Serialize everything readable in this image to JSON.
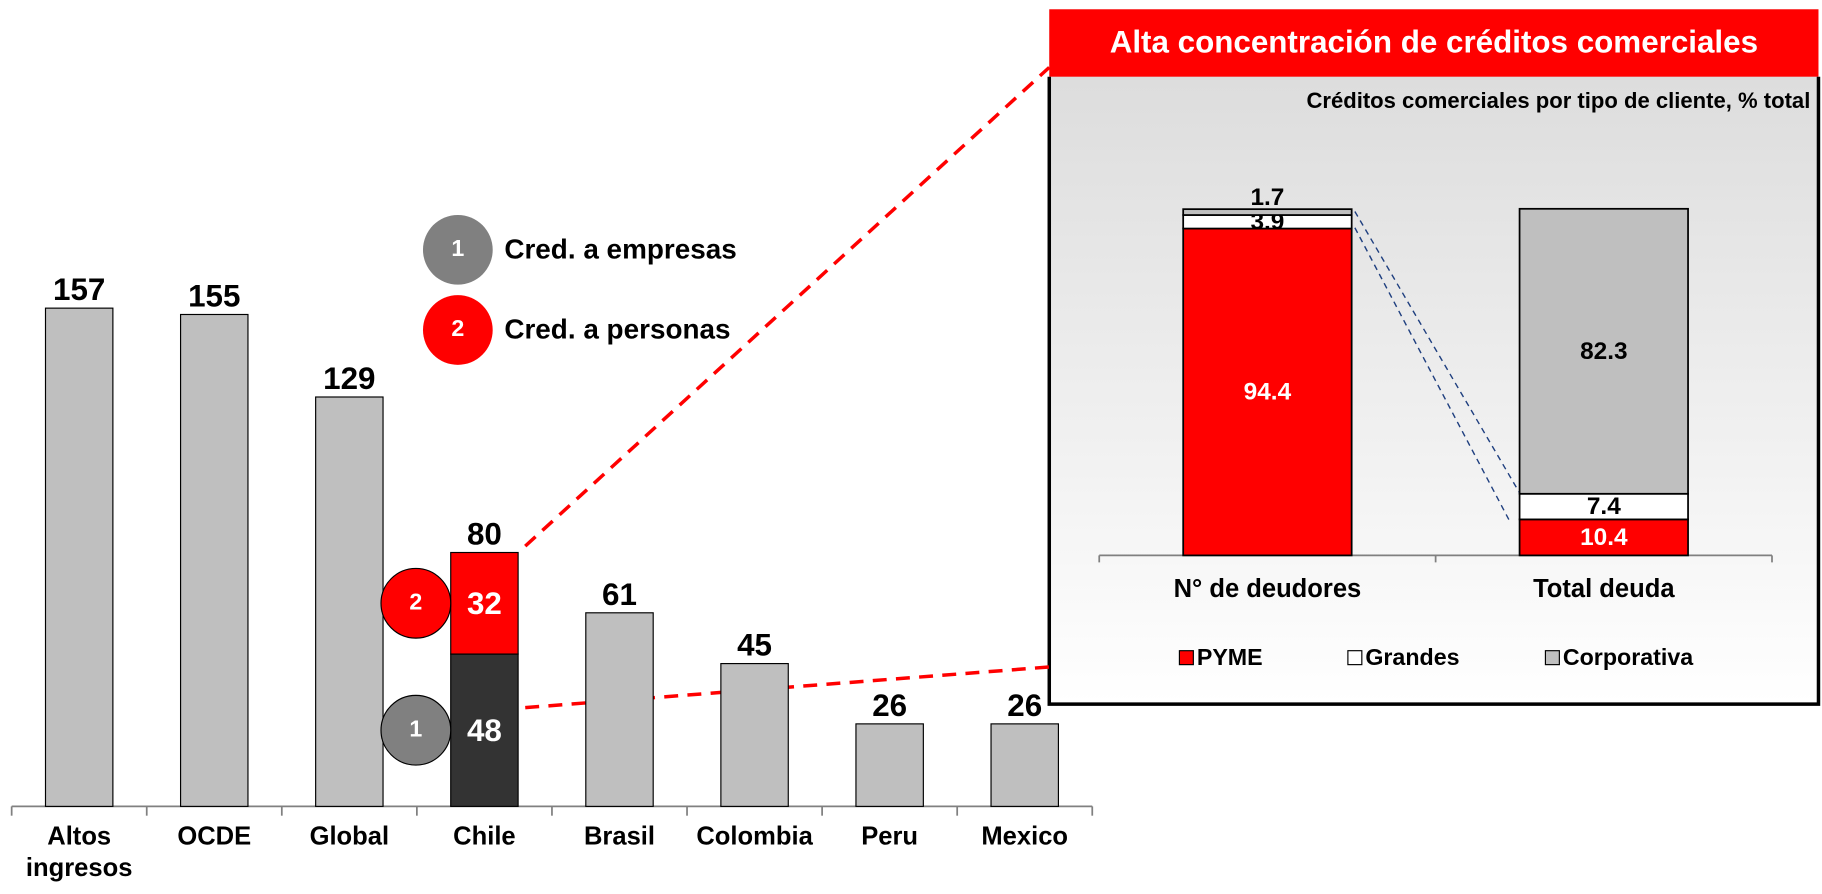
{
  "chart_data": [
    {
      "type": "bar",
      "categories": [
        "Altos ingresos",
        "OCDE",
        "Global",
        "Chile",
        "Brasil",
        "Colombia",
        "Peru",
        "Mexico"
      ],
      "values": [
        157,
        155,
        129,
        80,
        61,
        45,
        26,
        26
      ],
      "color": "#bfbfbf",
      "ylim": [
        0,
        160
      ],
      "series": [
        {
          "name": "Cred. a empresas",
          "marker": "1",
          "color": "#333333",
          "marker_color": "#808080",
          "values": [
            null,
            null,
            null,
            48,
            null,
            null,
            null,
            null
          ]
        },
        {
          "name": "Cred. a personas",
          "marker": "2",
          "color": "#ff0000",
          "marker_color": "#ff0000",
          "values": [
            null,
            null,
            null,
            32,
            null,
            null,
            null,
            null
          ]
        }
      ]
    },
    {
      "type": "stacked_bar",
      "title": "Alta concentración de créditos comerciales",
      "subtitle": "Créditos comerciales por tipo de cliente, % total",
      "categories": [
        "N° de deudores",
        "Total deuda"
      ],
      "ylim": [
        0,
        100
      ],
      "series": [
        {
          "name": "PYME",
          "color": "#ff0000",
          "label_color": "#ffffff",
          "values": [
            94.4,
            10.4
          ]
        },
        {
          "name": "Grandes",
          "color": "#ffffff",
          "label_color": "#000000",
          "values": [
            3.9,
            7.4
          ]
        },
        {
          "name": "Corporativa",
          "color": "#bfbfbf",
          "label_color": "#000000",
          "values": [
            1.7,
            82.3
          ]
        }
      ]
    }
  ]
}
